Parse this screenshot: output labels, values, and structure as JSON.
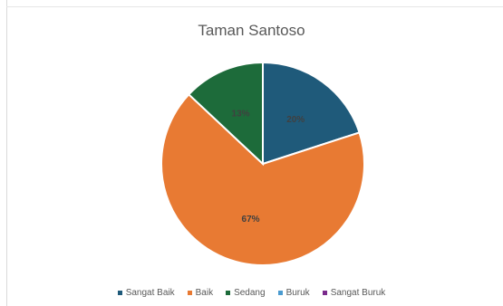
{
  "chart_data": {
    "type": "pie",
    "title": "Taman Santoso",
    "categories": [
      "Sangat Baik",
      "Baik",
      "Sedang",
      "Buruk",
      "Sangat Buruk"
    ],
    "values": [
      20,
      67,
      13,
      0,
      0
    ],
    "labels": [
      "20%",
      "67%",
      "13%",
      "",
      ""
    ],
    "colors": [
      "#1f5a7a",
      "#e87a33",
      "#1d6b3a",
      "#4a9bd0",
      "#7a2a8c"
    ],
    "legend_position": "bottom"
  }
}
